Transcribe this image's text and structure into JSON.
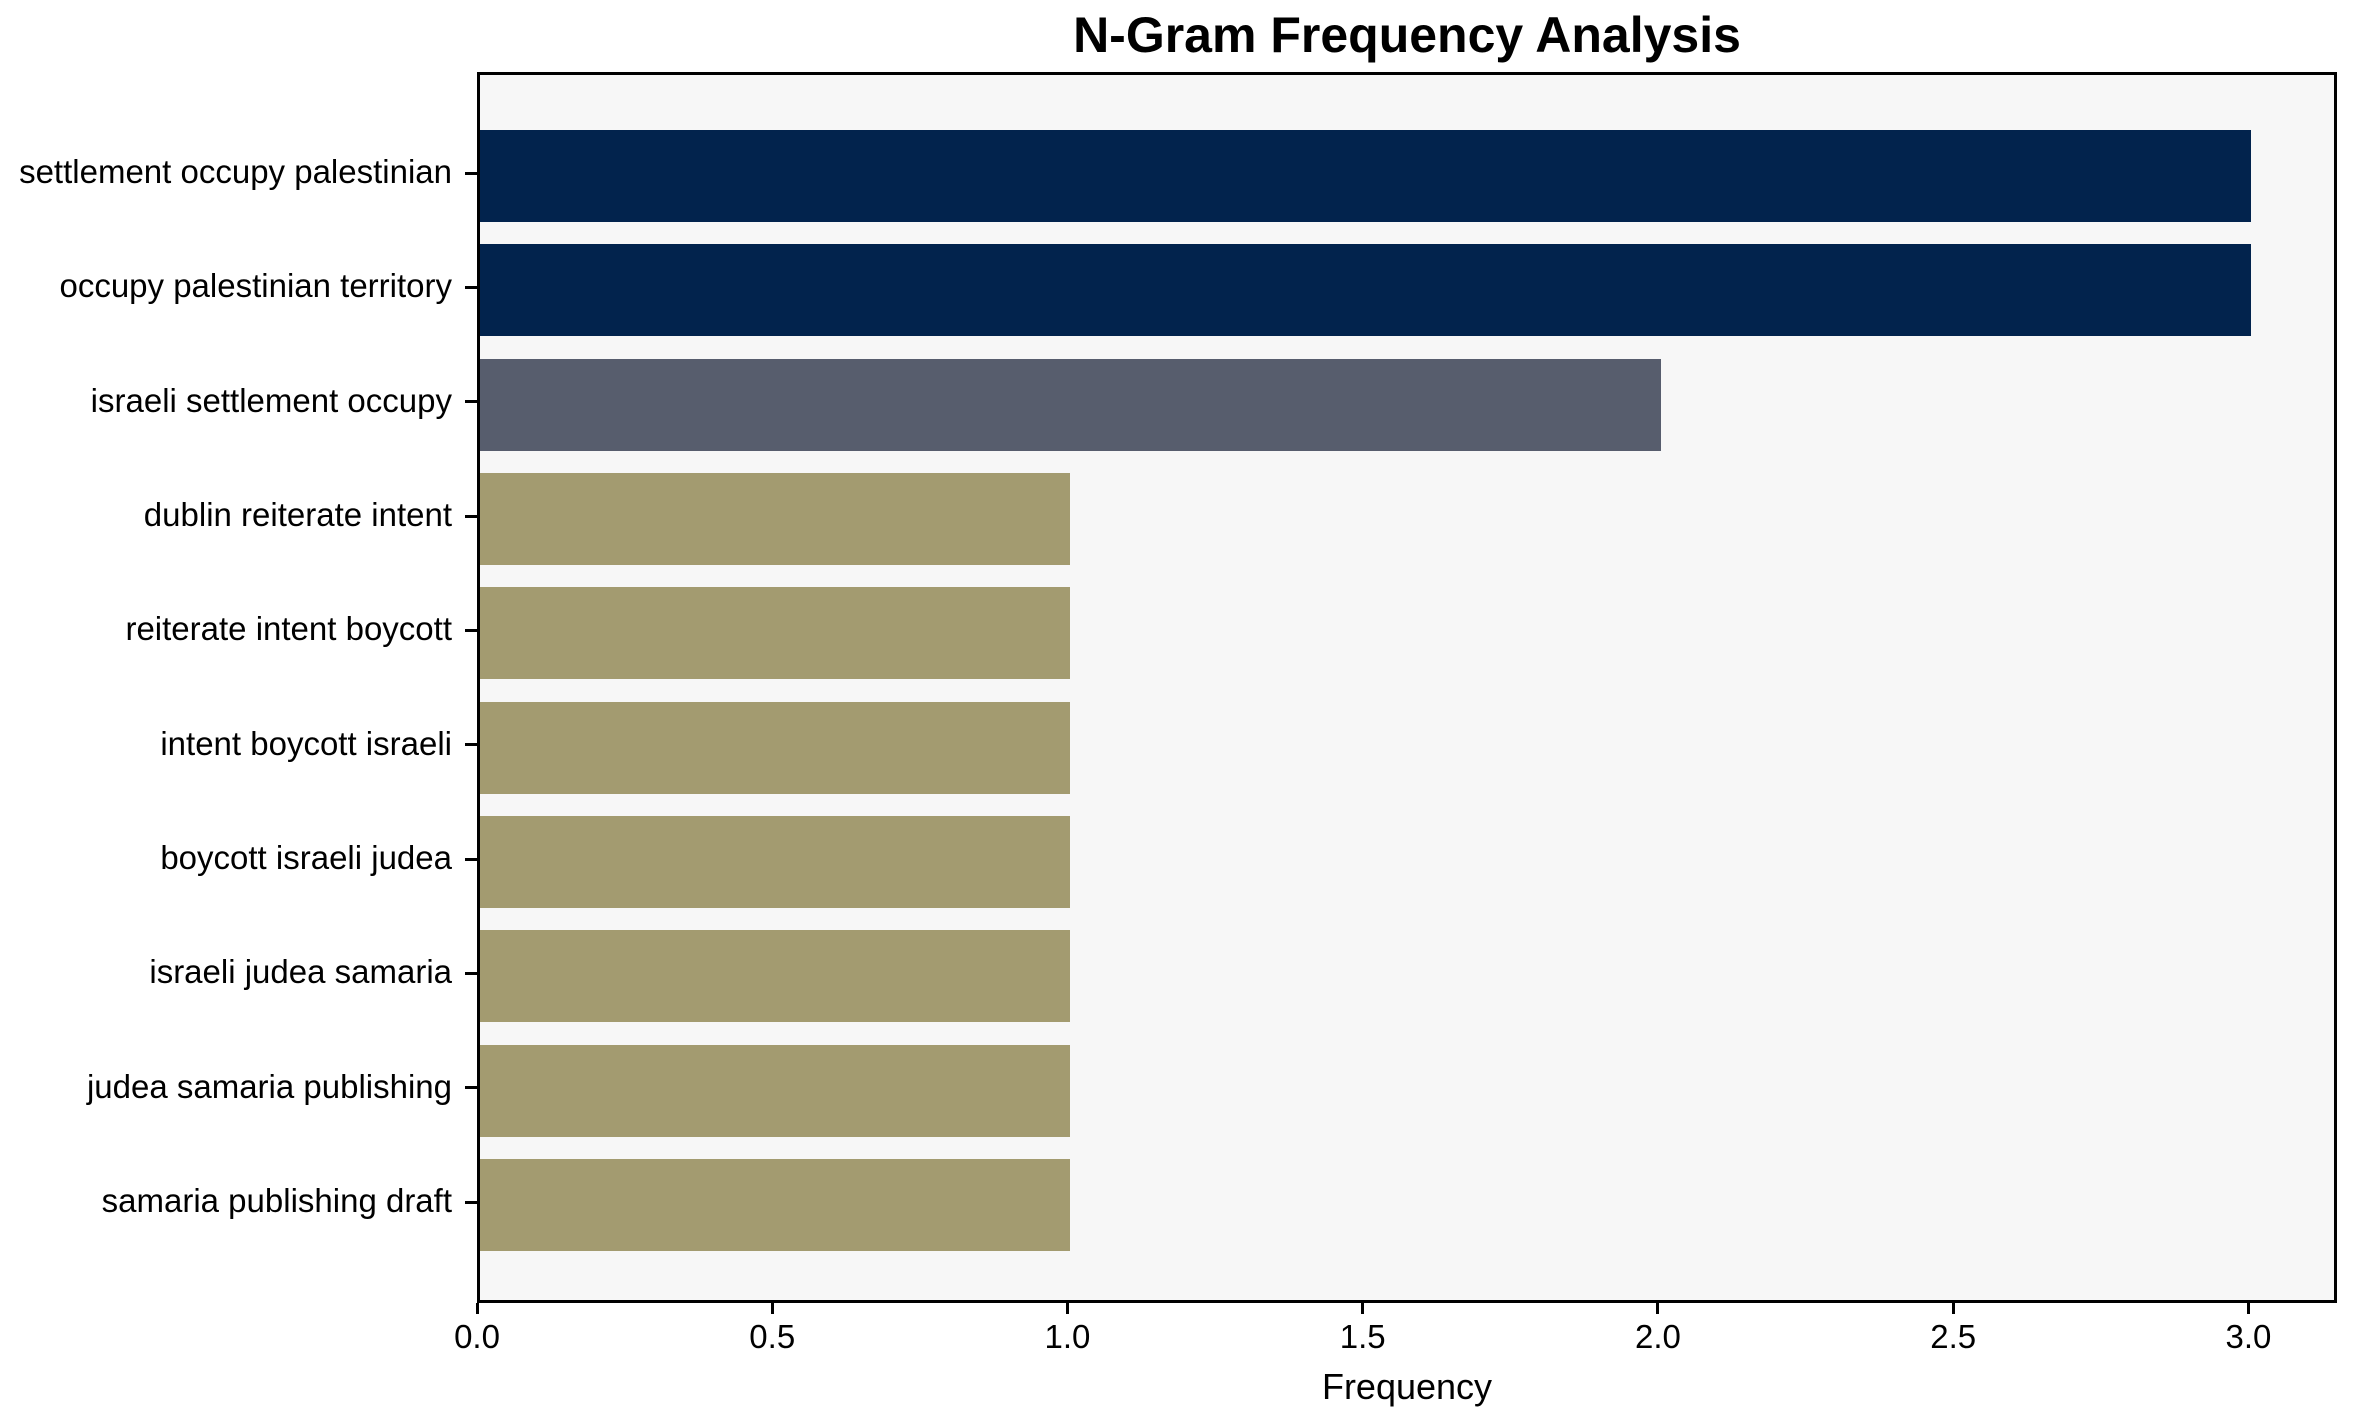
{
  "chart_data": {
    "type": "bar",
    "orientation": "horizontal",
    "title": "N-Gram Frequency Analysis",
    "xlabel": "Frequency",
    "ylabel": "",
    "categories": [
      "settlement occupy palestinian",
      "occupy palestinian territory",
      "israeli settlement occupy",
      "dublin reiterate intent",
      "reiterate intent boycott",
      "intent boycott israeli",
      "boycott israeli judea",
      "israeli judea samaria",
      "judea samaria publishing",
      "samaria publishing draft"
    ],
    "values": [
      3,
      3,
      2,
      1,
      1,
      1,
      1,
      1,
      1,
      1
    ],
    "bar_colors": [
      "#02234d",
      "#02234d",
      "#575d6d",
      "#a39b70",
      "#a39b70",
      "#a39b70",
      "#a39b70",
      "#a39b70",
      "#a39b70",
      "#a39b70"
    ],
    "xlim": [
      0,
      3.15
    ],
    "xticks": [
      "0.0",
      "0.5",
      "1.0",
      "1.5",
      "2.0",
      "2.5",
      "3.0"
    ],
    "xtick_values": [
      0,
      0.5,
      1,
      1.5,
      2,
      2.5,
      3
    ],
    "grid": false,
    "legend": null,
    "plot_background": "#f7f7f7",
    "figure_background": "#ffffff",
    "spine_color": "#000000"
  }
}
